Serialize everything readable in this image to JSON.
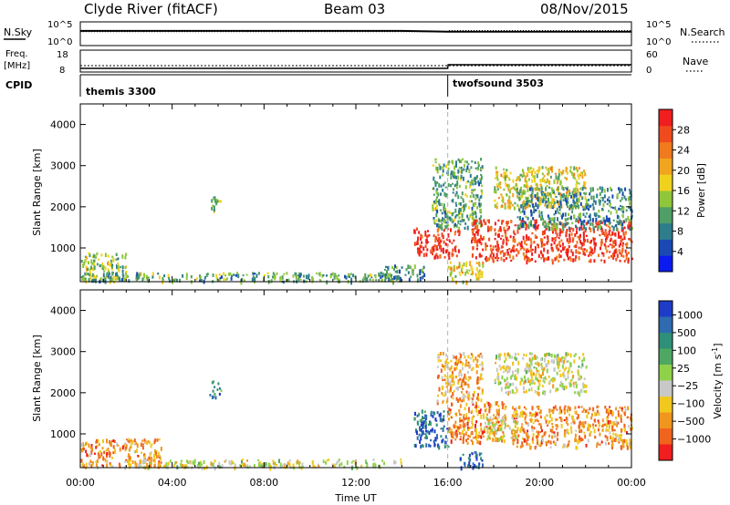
{
  "header": {
    "station": "Clyde River (fitACF)",
    "beam": "Beam 03",
    "date": "08/Nov/2015"
  },
  "chart_data": [
    {
      "type": "line",
      "name": "noise-panel",
      "left_label": "N.Sky",
      "right_label": "N.Search",
      "left_ticks": [
        "10^5",
        "10^0"
      ],
      "right_ticks": [
        "10^5",
        "10^0"
      ],
      "series": [
        {
          "name": "N.Sky",
          "x": [
            "00:00",
            "02:00",
            "04:00",
            "06:00",
            "08:00",
            "10:00",
            "12:00",
            "14:00",
            "16:00",
            "18:00",
            "20:00",
            "22:00",
            "24:00"
          ],
          "values": [
            3.2,
            3.2,
            3.2,
            3.2,
            3.2,
            3.2,
            3.2,
            3.2,
            3.0,
            3.0,
            3.0,
            3.0,
            3.0
          ]
        },
        {
          "name": "N.Search",
          "x": [
            "00:00",
            "16:00",
            "16:01",
            "24:00"
          ],
          "values": [
            3.0,
            3.0,
            3.3,
            3.3
          ]
        }
      ]
    },
    {
      "type": "line",
      "name": "freq-nave-panel",
      "left_label_1": "Freq.",
      "left_label_2": "[MHz]",
      "right_label": "Nave",
      "left_ticks": [
        "18",
        "8"
      ],
      "right_ticks": [
        "60",
        "0"
      ],
      "series": [
        {
          "name": "Freq.",
          "x": [
            "00:00",
            "24:00"
          ],
          "values": [
            10.5,
            10.5
          ]
        },
        {
          "name": "Nave",
          "x": [
            "00:00",
            "16:00",
            "16:01",
            "24:00"
          ],
          "values": [
            6,
            6,
            18,
            18
          ]
        }
      ]
    },
    {
      "type": "table",
      "name": "cpid-bar",
      "label": "CPID",
      "segments": [
        {
          "start": "00:00",
          "end": "16:00",
          "name": "themis 3300"
        },
        {
          "start": "16:00",
          "end": "24:00",
          "name": "twofsound 3503"
        }
      ]
    },
    {
      "type": "heatmap",
      "name": "power",
      "ylabel": "Slant Range [km]",
      "yticks": [
        "1000",
        "2000",
        "3000",
        "4000"
      ],
      "ylim": [
        180,
        4500
      ],
      "xlim": [
        "00:00",
        "24:00"
      ],
      "colorbar": {
        "label": "Power [dB]",
        "ticks": [
          "4",
          "8",
          "12",
          "16",
          "20",
          "24",
          "28"
        ],
        "colors": [
          "#0b1bf0",
          "#1a49b3",
          "#2e7d8c",
          "#4f9f66",
          "#8fc63a",
          "#f0d21e",
          "#f0a51e",
          "#f07a1e",
          "#f04b1e",
          "#f01e1e"
        ]
      },
      "regions": [
        {
          "t0": 0.0,
          "t1": 2.0,
          "r0": 200,
          "r1": 900,
          "level": 0.45
        },
        {
          "t0": 0.0,
          "t1": 14.0,
          "r0": 200,
          "r1": 420,
          "level": 0.35
        },
        {
          "t0": 5.6,
          "t1": 6.1,
          "r0": 1900,
          "r1": 2300,
          "level": 0.4
        },
        {
          "t0": 13.0,
          "t1": 15.0,
          "r0": 250,
          "r1": 600,
          "level": 0.3
        },
        {
          "t0": 14.5,
          "t1": 16.5,
          "r0": 800,
          "r1": 1500,
          "level": 0.95
        },
        {
          "t0": 15.3,
          "t1": 17.5,
          "r0": 1500,
          "r1": 3200,
          "level": 0.35
        },
        {
          "t0": 16.0,
          "t1": 17.5,
          "r0": 200,
          "r1": 700,
          "level": 0.55
        },
        {
          "t0": 17.0,
          "t1": 24.0,
          "r0": 700,
          "r1": 1700,
          "level": 0.9
        },
        {
          "t0": 18.0,
          "t1": 22.0,
          "r0": 2000,
          "r1": 3000,
          "level": 0.55
        },
        {
          "t0": 19.0,
          "t1": 24.0,
          "r0": 1500,
          "r1": 2500,
          "level": 0.3
        }
      ]
    },
    {
      "type": "heatmap",
      "name": "velocity",
      "ylabel": "Slant Range [km]",
      "yticks": [
        "1000",
        "2000",
        "3000",
        "4000"
      ],
      "ylim": [
        180,
        4500
      ],
      "xlim": [
        "00:00",
        "24:00"
      ],
      "xlabel": "Time UT",
      "xticks": [
        "00:00",
        "04:00",
        "08:00",
        "12:00",
        "16:00",
        "20:00",
        "00:00"
      ],
      "colorbar": {
        "label_1": "Velocity",
        "label_2": "[m s",
        "label_sup": "-1",
        "label_3": "]",
        "ticks": [
          "1000",
          "500",
          "100",
          "25",
          "−25",
          "−100",
          "−500",
          "−1000"
        ],
        "colors": [
          "#1e3cc8",
          "#2e6bb0",
          "#2f8f78",
          "#4fa862",
          "#8fd24a",
          "#c8c8c8",
          "#f0c81e",
          "#f0961e",
          "#f0641e",
          "#f01e1e"
        ]
      },
      "regions": [
        {
          "t0": 0.0,
          "t1": 3.5,
          "r0": 200,
          "r1": 900,
          "level": 0.75
        },
        {
          "t0": 2.5,
          "t1": 14.0,
          "r0": 200,
          "r1": 400,
          "level": 0.55
        },
        {
          "t0": 5.6,
          "t1": 6.1,
          "r0": 1900,
          "r1": 2300,
          "level": 0.25
        },
        {
          "t0": 14.5,
          "t1": 16.0,
          "r0": 700,
          "r1": 1600,
          "level": 0.15
        },
        {
          "t0": 16.0,
          "t1": 18.5,
          "r0": 800,
          "r1": 1800,
          "level": 0.78
        },
        {
          "t0": 15.5,
          "t1": 17.5,
          "r0": 1800,
          "r1": 3000,
          "level": 0.7
        },
        {
          "t0": 16.5,
          "t1": 17.5,
          "r0": 200,
          "r1": 600,
          "level": 0.12
        },
        {
          "t0": 18.8,
          "t1": 24.0,
          "r0": 700,
          "r1": 1700,
          "level": 0.75
        },
        {
          "t0": 18.0,
          "t1": 22.0,
          "r0": 2000,
          "r1": 3000,
          "level": 0.55
        },
        {
          "t0": 17.5,
          "t1": 19.0,
          "r0": 900,
          "r1": 1500,
          "level": 0.6
        }
      ]
    }
  ]
}
